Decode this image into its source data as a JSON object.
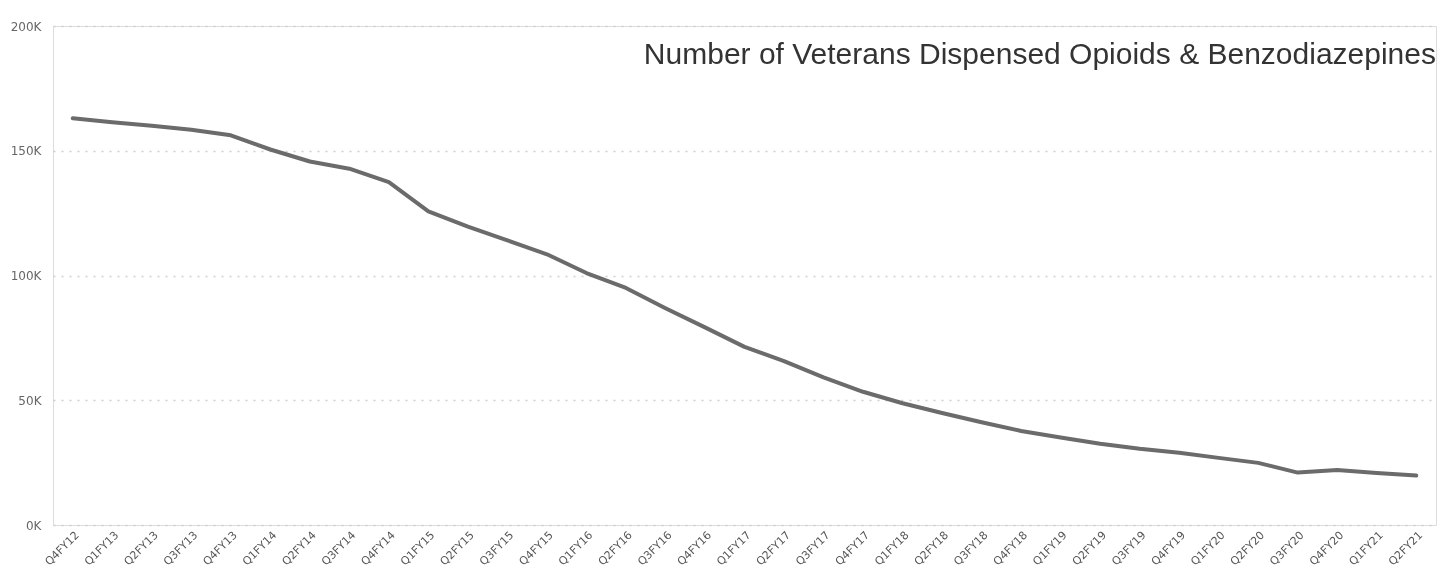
{
  "chart_data": {
    "type": "line",
    "title": "Number of Veterans Dispensed Opioids & Benzodiazepines",
    "categories": [
      "Q4FY12",
      "Q1FY13",
      "Q2FY13",
      "Q3FY13",
      "Q4FY13",
      "Q1FY14",
      "Q2FY14",
      "Q3FY14",
      "Q4FY14",
      "Q1FY15",
      "Q2FY15",
      "Q3FY15",
      "Q4FY15",
      "Q1FY16",
      "Q2FY16",
      "Q3FY16",
      "Q4FY16",
      "Q1FY17",
      "Q2FY17",
      "Q3FY17",
      "Q4FY17",
      "Q1FY18",
      "Q2FY18",
      "Q3FY18",
      "Q4FY18",
      "Q1FY19",
      "Q2FY19",
      "Q3FY19",
      "Q4FY19",
      "Q1FY20",
      "Q2FY20",
      "Q3FY20",
      "Q4FY20",
      "Q1FY21",
      "Q2FY21"
    ],
    "series": [
      {
        "color": "#6b6b6b",
        "values": [
          163000,
          161400,
          160000,
          158400,
          156200,
          150500,
          145700,
          142800,
          137400,
          125700,
          119600,
          114100,
          108500,
          101000,
          95000,
          86900,
          79200,
          71400,
          65700,
          59200,
          53400,
          48800,
          44900,
          41200,
          37700,
          35100,
          32600,
          30600,
          29000,
          26900,
          24900,
          21000,
          22000,
          20800,
          19800
        ]
      }
    ],
    "ylim": [
      0,
      200000
    ],
    "yticks": [
      {
        "value": 0,
        "label": "0K"
      },
      {
        "value": 50000,
        "label": "50K"
      },
      {
        "value": 100000,
        "label": "100K"
      },
      {
        "value": 150000,
        "label": "150K"
      },
      {
        "value": 200000,
        "label": "200K"
      }
    ],
    "grid": "y",
    "line_style": "solid",
    "marker": "none",
    "legend": false
  }
}
